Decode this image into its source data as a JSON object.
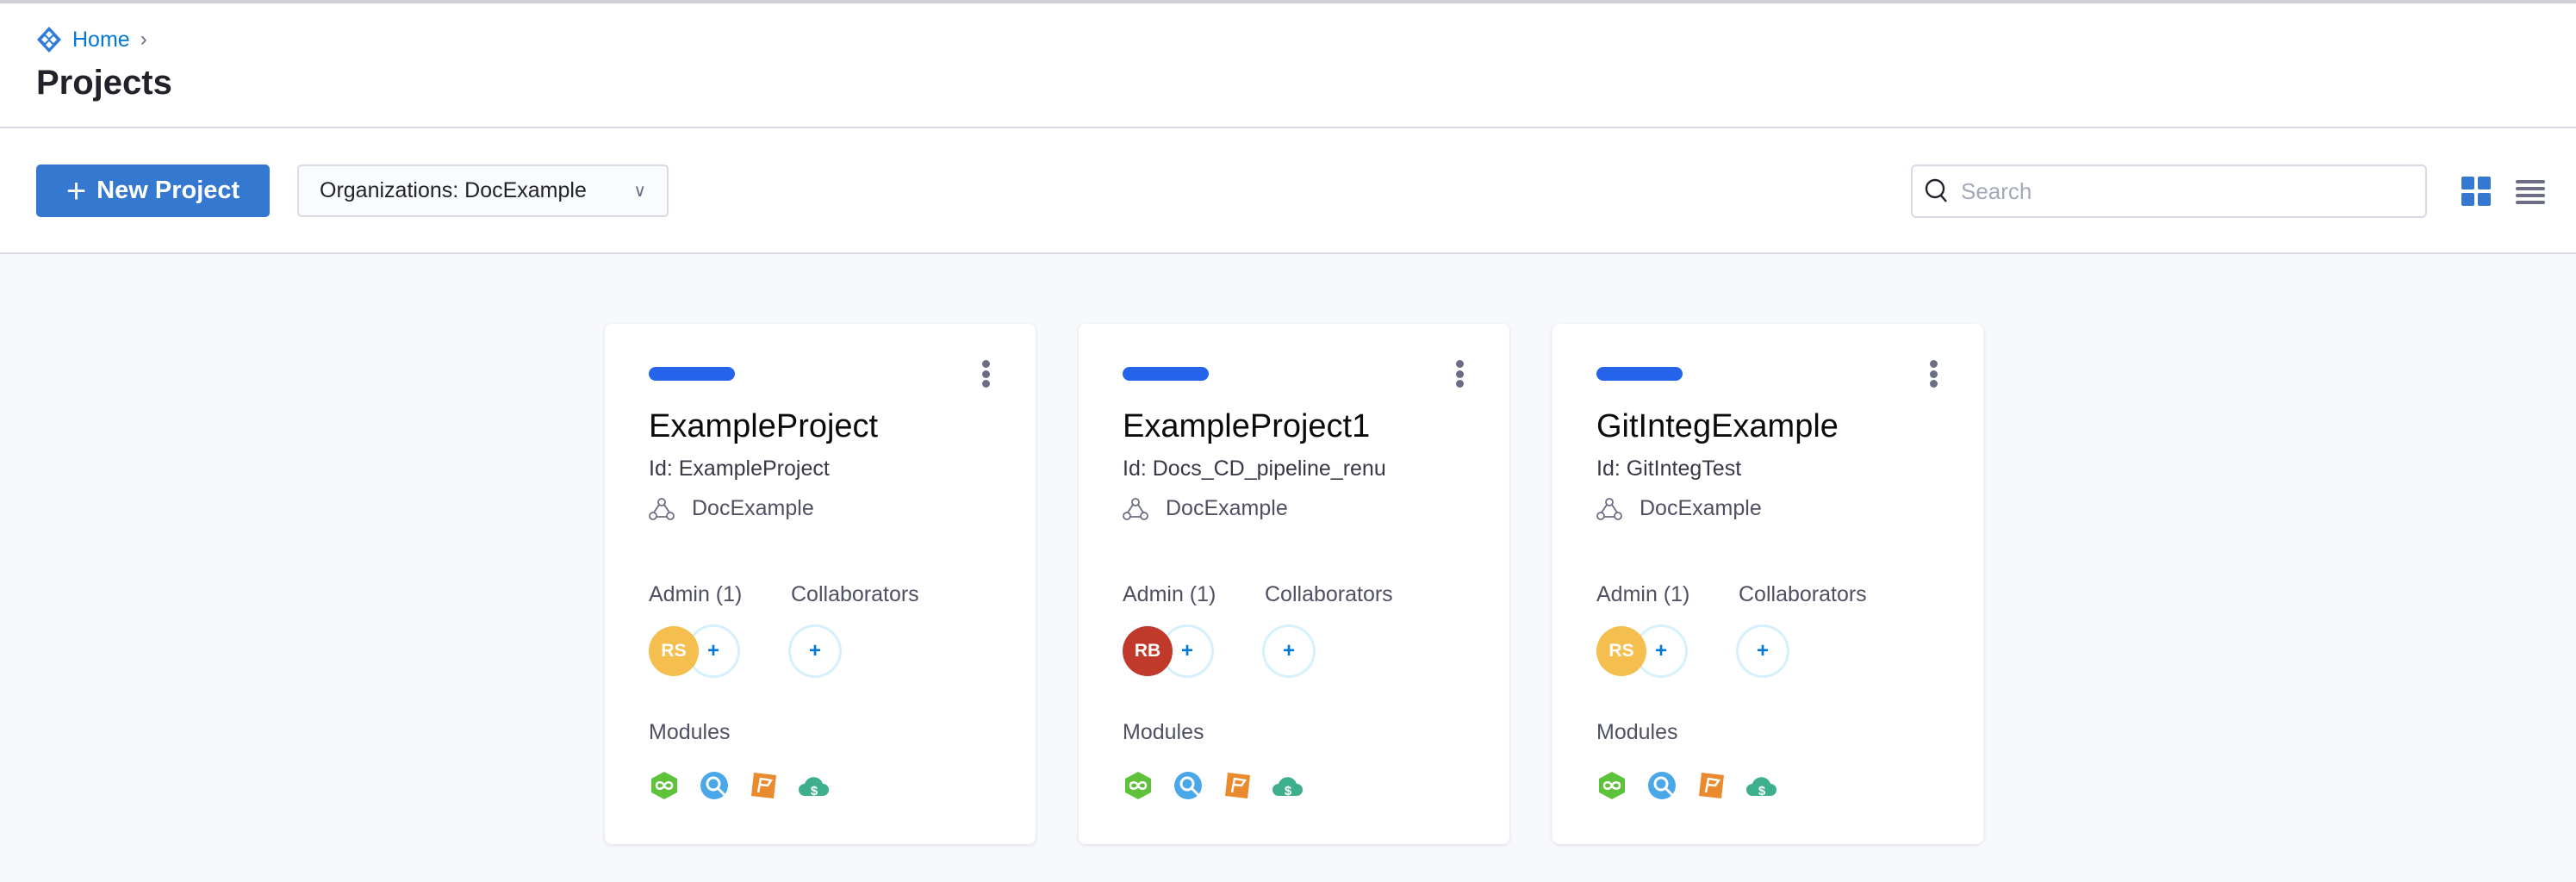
{
  "breadcrumb": {
    "home": "Home"
  },
  "page_title": "Projects",
  "toolbar": {
    "new_project_label": "New Project",
    "org_filter": "Organizations: DocExample",
    "search_placeholder": "Search",
    "view_modes": [
      "grid-view",
      "list-view"
    ],
    "active_view": "grid-view"
  },
  "colors": {
    "accent": "#3478d0",
    "card_pill": "#2563eb"
  },
  "projects": [
    {
      "name": "ExampleProject",
      "id": "Id: ExampleProject",
      "org": "DocExample",
      "admin_label": "Admin (1)",
      "collab_label": "Collaborators",
      "admin_initials": "RS",
      "admin_color": "#f4bf4f",
      "modules_label": "Modules",
      "modules": [
        "cd-icon",
        "ci-icon",
        "ff-icon",
        "ccm-icon"
      ]
    },
    {
      "name": "ExampleProject1",
      "id": "Id: Docs_CD_pipeline_renu",
      "org": "DocExample",
      "admin_label": "Admin (1)",
      "collab_label": "Collaborators",
      "admin_initials": "RB",
      "admin_color": "#c0392b",
      "modules_label": "Modules",
      "modules": [
        "cd-icon",
        "ci-icon",
        "ff-icon",
        "ccm-icon"
      ]
    },
    {
      "name": "GitIntegExample",
      "id": "Id: GitIntegTest",
      "org": "DocExample",
      "admin_label": "Admin (1)",
      "collab_label": "Collaborators",
      "admin_initials": "RS",
      "admin_color": "#f4bf4f",
      "modules_label": "Modules",
      "modules": [
        "cd-icon",
        "ci-icon",
        "ff-icon",
        "ccm-icon"
      ]
    }
  ]
}
